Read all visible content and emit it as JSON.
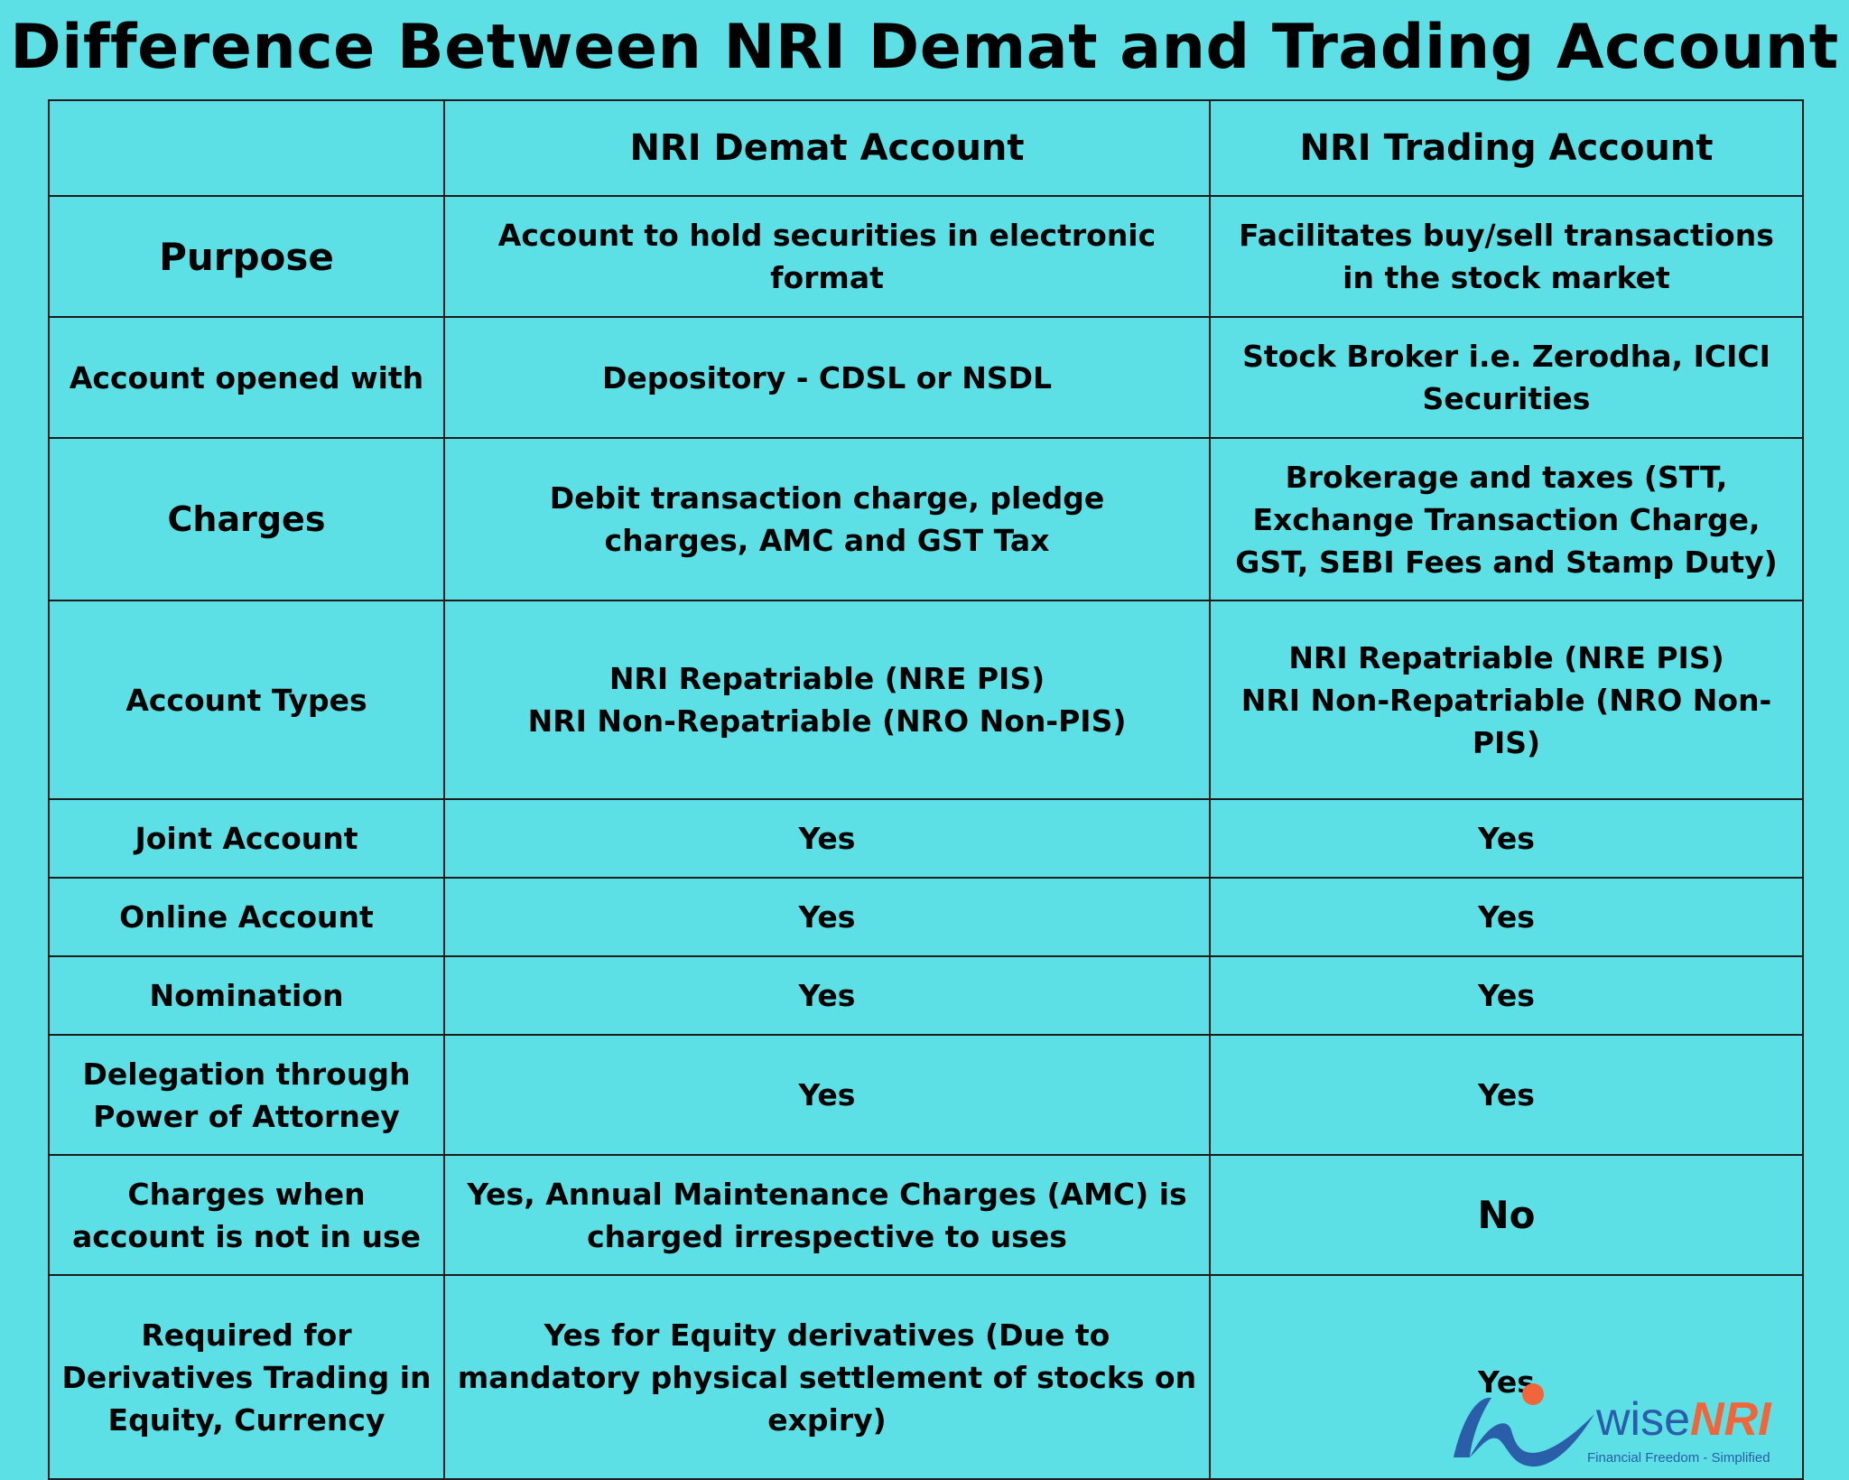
{
  "title": "Difference Between NRI Demat and Trading Account",
  "table": {
    "header": {
      "corner": "",
      "col1": "NRI Demat Account",
      "col2": "NRI Trading Account"
    },
    "rows": [
      {
        "label": "Purpose",
        "demat": "Account to hold securities in electronic format",
        "trading": "Facilitates buy/sell transactions in the stock market"
      },
      {
        "label": "Account opened with",
        "demat": "Depository - CDSL or NSDL",
        "trading": "Stock Broker i.e. Zerodha, ICICI Securities"
      },
      {
        "label": "Charges",
        "demat": "Debit transaction charge, pledge charges, AMC and GST Tax",
        "trading": "Brokerage and taxes (STT, Exchange Transaction Charge, GST, SEBI Fees and Stamp Duty)"
      },
      {
        "label": "Account Types",
        "demat": [
          "NRI Repatriable (NRE PIS)",
          "NRI Non-Repatriable (NRO Non-PIS)"
        ],
        "trading": [
          "NRI Repatriable (NRE PIS)",
          "NRI Non-Repatriable (NRO Non-PIS)"
        ]
      },
      {
        "label": "Joint Account",
        "demat": "Yes",
        "trading": "Yes"
      },
      {
        "label": "Online Account",
        "demat": "Yes",
        "trading": "Yes"
      },
      {
        "label": "Nomination",
        "demat": "Yes",
        "trading": "Yes"
      },
      {
        "label": "Delegation through Power of Attorney",
        "demat": "Yes",
        "trading": "Yes"
      },
      {
        "label": "Charges when account is not in use",
        "demat": "Yes, Annual Maintenance Charges (AMC) is charged irrespective to uses",
        "trading": "No"
      },
      {
        "label": "Required for Derivatives Trading in Equity, Currency",
        "demat": "Yes for Equity derivatives (Due to mandatory physical settlement of stocks on expiry)",
        "trading": "Yes"
      }
    ]
  },
  "logo": {
    "word_a": "wise",
    "word_b": "NRI",
    "tagline": "Financial Freedom - Simplified",
    "colors": {
      "blue": "#2a5ea8",
      "orange": "#f0663a"
    }
  },
  "colors": {
    "background": "#5ce0e6",
    "border": "#1c1c1c",
    "text": "#000000"
  }
}
